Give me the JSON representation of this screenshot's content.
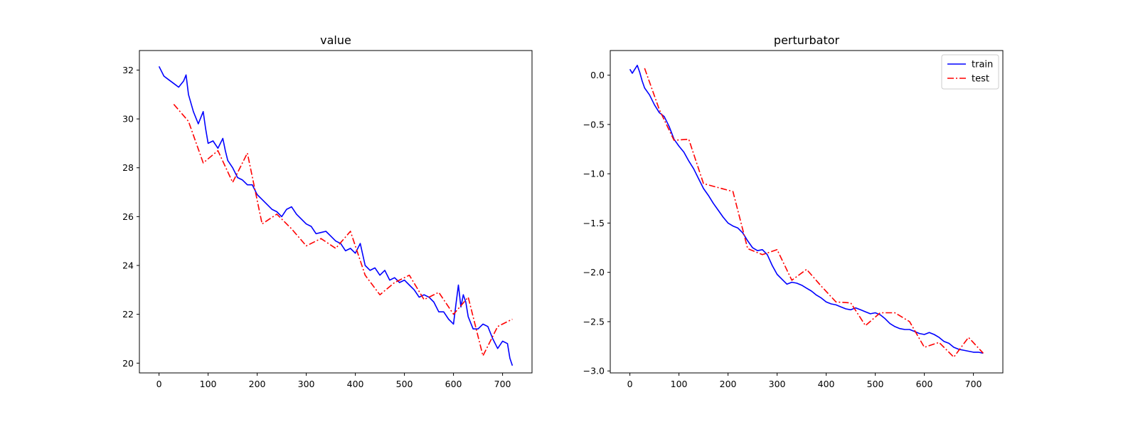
{
  "chart_data": [
    {
      "type": "line",
      "title": "value",
      "xlabel": "",
      "ylabel": "",
      "xlim": [
        -40,
        760
      ],
      "ylim": [
        19.6,
        32.8
      ],
      "xticks": [
        0,
        100,
        200,
        300,
        400,
        500,
        600,
        700
      ],
      "yticks": [
        20,
        22,
        24,
        26,
        28,
        30,
        32
      ],
      "grid": false,
      "legend": null,
      "series": [
        {
          "label": "train",
          "color": "#0000ff",
          "style": "solid",
          "x": [
            0,
            10,
            20,
            30,
            40,
            50,
            55,
            60,
            70,
            80,
            90,
            95,
            100,
            110,
            120,
            130,
            135,
            140,
            150,
            160,
            170,
            180,
            190,
            200,
            210,
            220,
            230,
            240,
            250,
            260,
            270,
            280,
            290,
            300,
            310,
            320,
            330,
            340,
            350,
            360,
            370,
            380,
            390,
            400,
            410,
            420,
            430,
            440,
            450,
            460,
            470,
            480,
            490,
            500,
            510,
            520,
            530,
            540,
            550,
            560,
            570,
            580,
            590,
            600,
            605,
            610,
            615,
            620,
            625,
            630,
            640,
            650,
            660,
            670,
            680,
            690,
            700,
            710,
            715,
            720
          ],
          "values": [
            32.15,
            31.75,
            31.6,
            31.45,
            31.3,
            31.55,
            31.8,
            31.0,
            30.3,
            29.8,
            30.3,
            29.6,
            29.0,
            29.1,
            28.8,
            29.2,
            28.7,
            28.3,
            28.0,
            27.6,
            27.5,
            27.3,
            27.3,
            26.9,
            26.7,
            26.5,
            26.3,
            26.2,
            26.0,
            26.3,
            26.4,
            26.1,
            25.9,
            25.7,
            25.6,
            25.3,
            25.35,
            25.4,
            25.2,
            25.0,
            24.9,
            24.6,
            24.7,
            24.5,
            24.9,
            24.0,
            23.8,
            23.9,
            23.6,
            23.8,
            23.4,
            23.5,
            23.3,
            23.4,
            23.2,
            23.0,
            22.7,
            22.8,
            22.7,
            22.5,
            22.1,
            22.1,
            21.8,
            21.6,
            22.4,
            23.2,
            22.3,
            22.8,
            22.5,
            21.9,
            21.4,
            21.4,
            21.6,
            21.5,
            21.0,
            20.6,
            20.9,
            20.8,
            20.2,
            19.9
          ]
        },
        {
          "label": "test",
          "color": "#ff0000",
          "style": "dashdot",
          "x": [
            30,
            60,
            90,
            120,
            150,
            180,
            210,
            240,
            270,
            300,
            330,
            360,
            390,
            420,
            450,
            480,
            510,
            540,
            570,
            600,
            630,
            660,
            690,
            720
          ],
          "values": [
            30.6,
            29.9,
            28.2,
            28.7,
            27.4,
            28.6,
            25.7,
            26.1,
            25.5,
            24.8,
            25.1,
            24.7,
            25.4,
            23.6,
            22.8,
            23.3,
            23.6,
            22.6,
            22.9,
            22.0,
            22.7,
            20.3,
            21.5,
            21.8
          ]
        }
      ]
    },
    {
      "type": "line",
      "title": "perturbator",
      "xlabel": "",
      "ylabel": "",
      "xlim": [
        -40,
        760
      ],
      "ylim": [
        -3.02,
        0.25
      ],
      "xticks": [
        0,
        100,
        200,
        300,
        400,
        500,
        600,
        700
      ],
      "yticks": [
        0.0,
        -0.5,
        -1.0,
        -1.5,
        -2.0,
        -2.5,
        -3.0
      ],
      "ytick_labels": [
        "0.0",
        "−0.5",
        "−1.0",
        "−1.5",
        "−2.0",
        "−2.5",
        "−3.0"
      ],
      "grid": false,
      "legend": {
        "position": "upper right",
        "entries": [
          "train",
          "test"
        ]
      },
      "series": [
        {
          "label": "train",
          "color": "#0000ff",
          "style": "solid",
          "x": [
            0,
            5,
            10,
            15,
            20,
            25,
            30,
            40,
            50,
            60,
            70,
            80,
            90,
            100,
            110,
            120,
            130,
            140,
            150,
            160,
            170,
            180,
            190,
            200,
            210,
            220,
            230,
            240,
            250,
            260,
            270,
            280,
            290,
            300,
            310,
            320,
            330,
            340,
            350,
            360,
            370,
            380,
            390,
            400,
            410,
            420,
            430,
            440,
            450,
            460,
            470,
            480,
            490,
            500,
            510,
            520,
            530,
            540,
            550,
            560,
            570,
            580,
            590,
            600,
            610,
            620,
            630,
            640,
            650,
            660,
            670,
            680,
            690,
            700,
            710,
            720
          ],
          "values": [
            0.06,
            0.02,
            0.06,
            0.1,
            0.03,
            -0.06,
            -0.13,
            -0.2,
            -0.3,
            -0.38,
            -0.42,
            -0.52,
            -0.65,
            -0.72,
            -0.78,
            -0.87,
            -0.95,
            -1.05,
            -1.15,
            -1.22,
            -1.3,
            -1.37,
            -1.44,
            -1.5,
            -1.53,
            -1.55,
            -1.6,
            -1.68,
            -1.75,
            -1.78,
            -1.77,
            -1.82,
            -1.93,
            -2.02,
            -2.07,
            -2.12,
            -2.1,
            -2.11,
            -2.13,
            -2.16,
            -2.19,
            -2.23,
            -2.26,
            -2.3,
            -2.32,
            -2.33,
            -2.35,
            -2.37,
            -2.38,
            -2.36,
            -2.38,
            -2.4,
            -2.42,
            -2.41,
            -2.43,
            -2.47,
            -2.52,
            -2.55,
            -2.57,
            -2.58,
            -2.58,
            -2.6,
            -2.62,
            -2.63,
            -2.61,
            -2.63,
            -2.66,
            -2.7,
            -2.72,
            -2.76,
            -2.78,
            -2.79,
            -2.8,
            -2.81,
            -2.81,
            -2.82
          ]
        },
        {
          "label": "test",
          "color": "#ff0000",
          "style": "dashdot",
          "x": [
            30,
            60,
            90,
            120,
            150,
            180,
            210,
            240,
            270,
            300,
            330,
            360,
            390,
            420,
            450,
            480,
            510,
            540,
            570,
            600,
            630,
            660,
            690,
            720
          ],
          "values": [
            0.07,
            -0.35,
            -0.66,
            -0.65,
            -1.1,
            -1.14,
            -1.18,
            -1.76,
            -1.82,
            -1.77,
            -2.08,
            -1.97,
            -2.14,
            -2.3,
            -2.31,
            -2.54,
            -2.41,
            -2.41,
            -2.5,
            -2.76,
            -2.71,
            -2.86,
            -2.66,
            -2.82
          ]
        }
      ]
    }
  ]
}
